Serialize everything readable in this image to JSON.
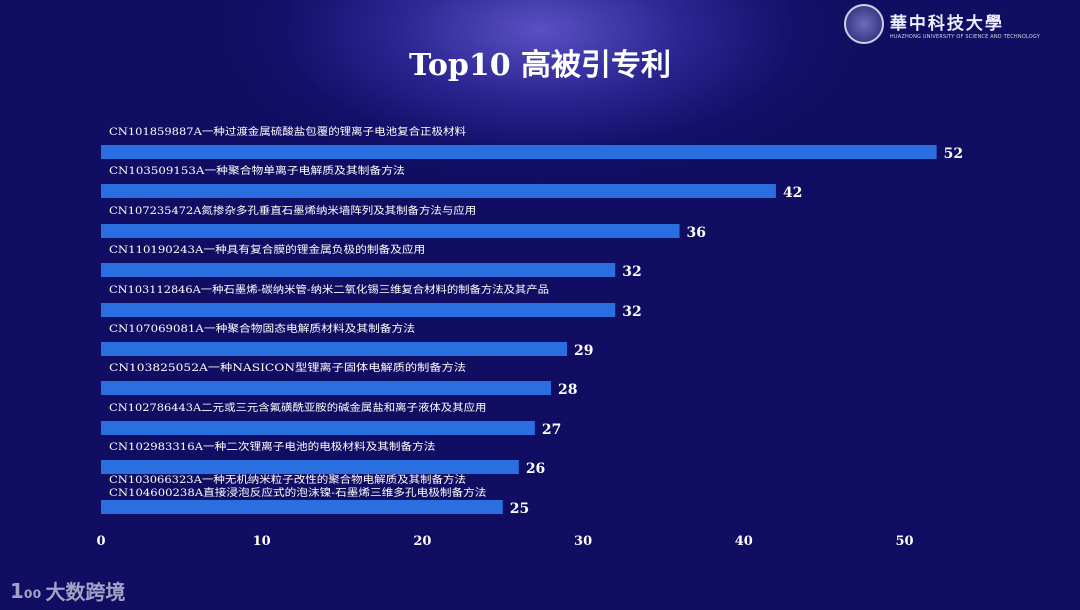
{
  "header": {
    "logo_cn": "華中科技大學",
    "logo_en": "HUAZHONG UNIVERSITY OF SCIENCE AND TECHNOLOGY",
    "title": "Top10 高被引专利"
  },
  "watermark": {
    "icon": "1₀₀",
    "text": "大数跨境"
  },
  "colors": {
    "bar": "#2a6fe0",
    "text": "#ffffff"
  },
  "chart_data": {
    "type": "bar",
    "orientation": "horizontal",
    "title": "Top10 高被引专利",
    "categories": [
      "CN101859887A一种过渡金属硫酸盐包覆的锂离子电池复合正极材料",
      "CN103509153A一种聚合物单离子电解质及其制备方法",
      "CN107235472A氮掺杂多孔垂直石墨烯纳米墙阵列及其制备方法与应用",
      "CN110190243A一种具有复合膜的锂金属负极的制备及应用",
      "CN103112846A一种石墨烯-碳纳米管-纳米二氧化锡三维复合材料的制备方法及其产品",
      "CN107069081A一种聚合物固态电解质材料及其制备方法",
      "CN103825052A一种NASICON型锂离子固体电解质的制备方法",
      "CN102786443A二元或三元含氟磺酰亚胺的碱金属盐和离子液体及其应用",
      "CN102983316A一种二次锂离子电池的电极材料及其制备方法",
      "CN103066323A一种无机纳米粒子改性的聚合物电解质及其制备方法",
      "CN104600238A直接浸泡反应式的泡沫镍-石墨烯三维多孔电极制备方法"
    ],
    "bars": [
      {
        "labels": [
          0
        ],
        "value": 52
      },
      {
        "labels": [
          1
        ],
        "value": 42
      },
      {
        "labels": [
          2
        ],
        "value": 36
      },
      {
        "labels": [
          3
        ],
        "value": 32
      },
      {
        "labels": [
          4
        ],
        "value": 32
      },
      {
        "labels": [
          5
        ],
        "value": 29
      },
      {
        "labels": [
          6
        ],
        "value": 28
      },
      {
        "labels": [
          7
        ],
        "value": 27
      },
      {
        "labels": [
          8
        ],
        "value": 26
      },
      {
        "labels": [
          9,
          10
        ],
        "value": 25
      }
    ],
    "x_ticks": [
      0,
      10,
      20,
      30,
      40,
      50
    ],
    "xlim": [
      0,
      52
    ],
    "grid": false,
    "legend": "none"
  }
}
